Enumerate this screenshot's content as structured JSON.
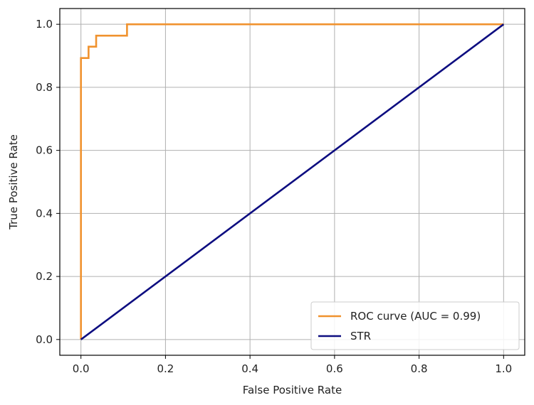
{
  "chart_data": {
    "type": "line",
    "title": "",
    "xlabel": "False Positive Rate",
    "ylabel": "True Positive Rate",
    "xlim": [
      -0.05,
      1.05
    ],
    "ylim": [
      -0.05,
      1.05
    ],
    "xticks": [
      0.0,
      0.2,
      0.4,
      0.6,
      0.8,
      1.0
    ],
    "yticks": [
      0.0,
      0.2,
      0.4,
      0.6,
      0.8,
      1.0
    ],
    "xtick_labels": [
      "0.0",
      "0.2",
      "0.4",
      "0.6",
      "0.8",
      "1.0"
    ],
    "ytick_labels": [
      "0.0",
      "0.2",
      "0.4",
      "0.6",
      "0.8",
      "1.0"
    ],
    "grid": true,
    "legend_position": "lower-right",
    "series": [
      {
        "name": "ROC curve (AUC = 0.99)",
        "color": "#f0922e",
        "style": "step",
        "x": [
          0.0,
          0.0,
          0.0,
          0.0,
          0.018,
          0.018,
          0.036,
          0.036,
          0.109,
          0.109,
          1.0
        ],
        "y": [
          0.0,
          0.55,
          0.893,
          0.893,
          0.893,
          0.929,
          0.929,
          0.964,
          0.964,
          1.0,
          1.0
        ]
      },
      {
        "name": "STR",
        "color": "#0d0d80",
        "style": "line",
        "x": [
          0.0,
          1.0
        ],
        "y": [
          0.0,
          1.0
        ]
      }
    ]
  }
}
